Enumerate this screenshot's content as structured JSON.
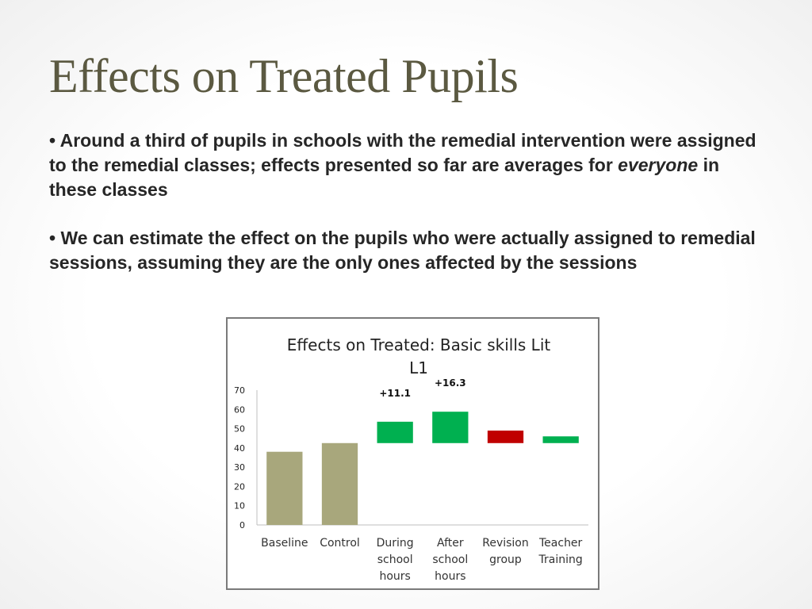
{
  "slide": {
    "title": "Effects on Treated Pupils",
    "bullet1": {
      "marker": "•",
      "text_before": "Around a third of pupils in schools with the remedial intervention were assigned to the remedial classes; effects presented so far are averages for",
      "emphasis": "everyone",
      "text_after": "in these classes"
    },
    "bullet2": {
      "marker": "•",
      "text": "We can estimate the effect on the pupils who were actually assigned to remedial sessions, assuming they are the only ones affected by the sessions"
    }
  },
  "chart_data": {
    "type": "bar",
    "title_lines": [
      "Effects on Treated: Basic skills Lit",
      "L1"
    ],
    "categories": [
      [
        "Baseline"
      ],
      [
        "Control"
      ],
      [
        "During",
        "school",
        "hours"
      ],
      [
        "After",
        "school",
        "hours"
      ],
      [
        "Revision",
        "group"
      ],
      [
        "Teacher",
        "Training"
      ]
    ],
    "bars": [
      {
        "start": 0,
        "end": 38,
        "color": "#a8a77c",
        "label": ""
      },
      {
        "start": 0,
        "end": 42.5,
        "color": "#a8a77c",
        "label": ""
      },
      {
        "start": 42.5,
        "end": 53.6,
        "color": "#00b050",
        "label": "+11.1"
      },
      {
        "start": 42.5,
        "end": 58.8,
        "color": "#00b050",
        "label": "+16.3"
      },
      {
        "start": 42.5,
        "end": 49,
        "color": "#c00000",
        "label": ""
      },
      {
        "start": 42.5,
        "end": 46,
        "color": "#00b050",
        "label": ""
      }
    ],
    "ylim": [
      0,
      70
    ],
    "yticks": [
      0,
      10,
      20,
      30,
      40,
      50,
      60,
      70
    ],
    "grid": false,
    "legend": "none"
  }
}
